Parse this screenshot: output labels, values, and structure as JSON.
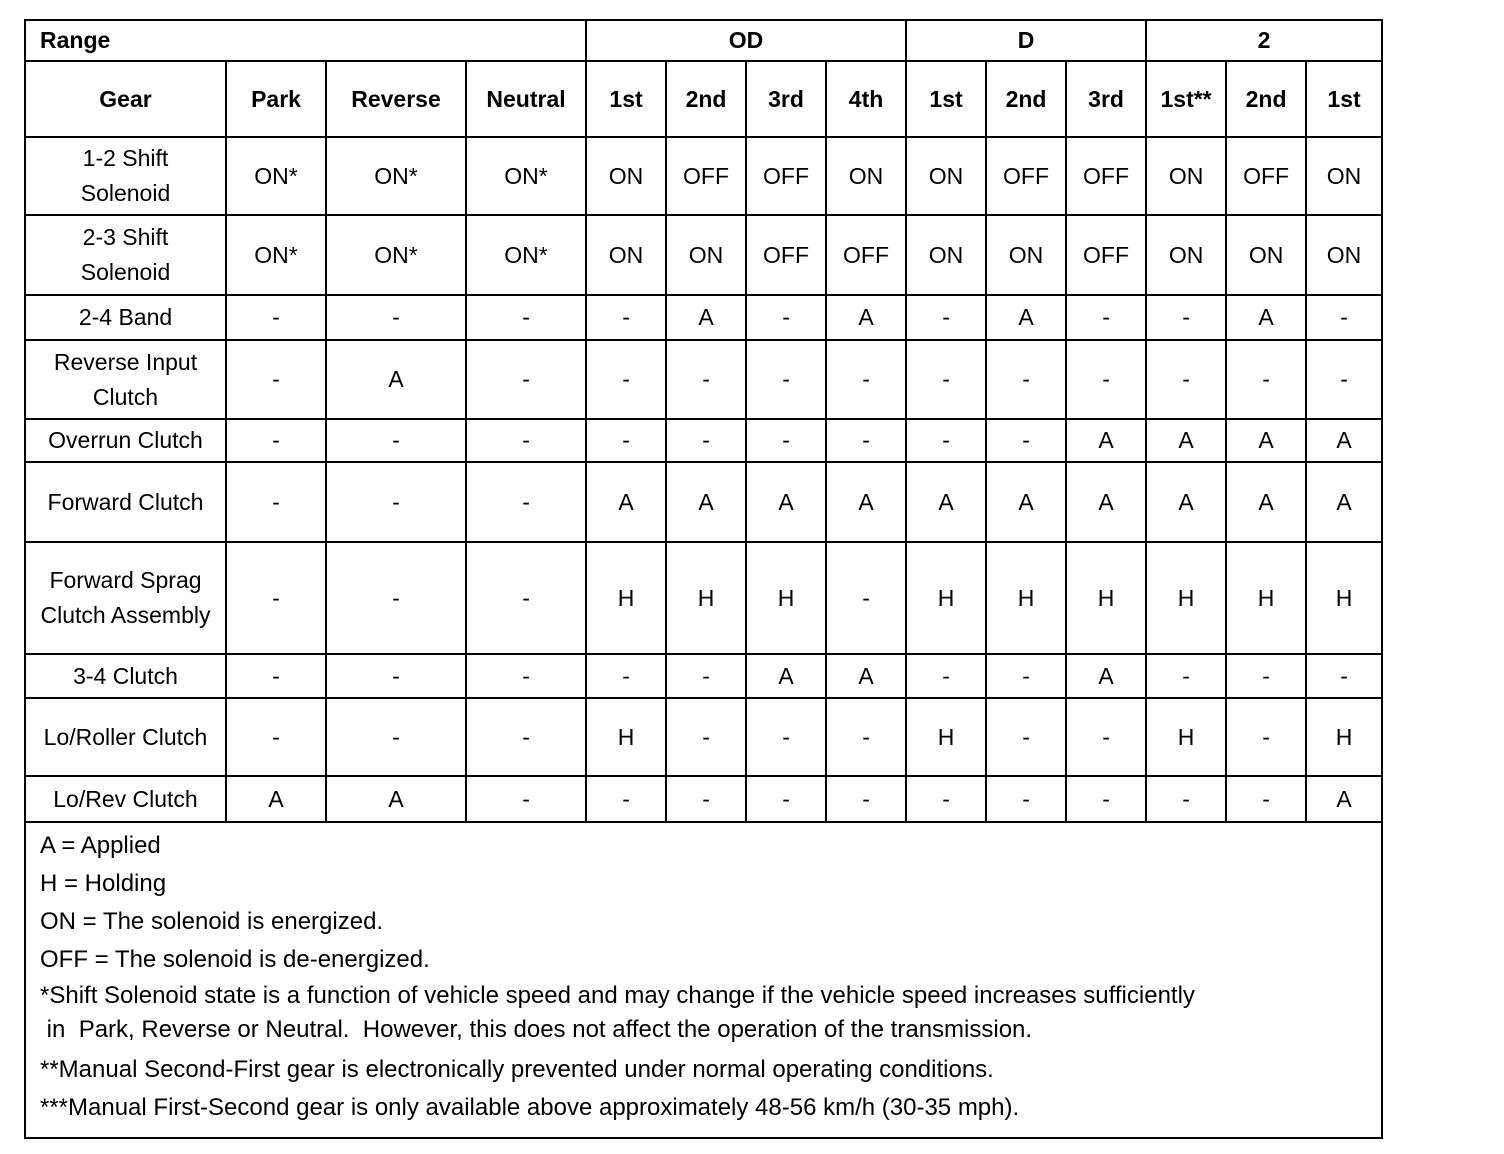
{
  "range_label": "Range",
  "ranges": [
    {
      "label": "OD",
      "span": 4
    },
    {
      "label": "D",
      "span": 3
    },
    {
      "label": "2",
      "span": 3
    }
  ],
  "gear_label": "Gear",
  "gears": [
    "Park",
    "Reverse",
    "Neutral",
    "1st",
    "2nd",
    "3rd",
    "4th",
    "1st",
    "2nd",
    "3rd",
    "1st**",
    "2nd",
    "1st"
  ],
  "rows": [
    {
      "label": "1-2 Shift Solenoid",
      "cells": [
        "ON*",
        "ON*",
        "ON*",
        "ON",
        "OFF",
        "OFF",
        "ON",
        "ON",
        "OFF",
        "OFF",
        "ON",
        "OFF",
        "ON"
      ]
    },
    {
      "label": "2-3 Shift Solenoid",
      "cells": [
        "ON*",
        "ON*",
        "ON*",
        "ON",
        "ON",
        "OFF",
        "OFF",
        "ON",
        "ON",
        "OFF",
        "ON",
        "ON",
        "ON"
      ]
    },
    {
      "label": "2-4 Band",
      "cells": [
        "-",
        "-",
        "-",
        "-",
        "A",
        "-",
        "A",
        "-",
        "A",
        "-",
        "-",
        "A",
        "-"
      ]
    },
    {
      "label": "Reverse Input Clutch",
      "cells": [
        "-",
        "A",
        "-",
        "-",
        "-",
        "-",
        "-",
        "-",
        "-",
        "-",
        "-",
        "-",
        "-"
      ]
    },
    {
      "label": "Overrun Clutch",
      "cells": [
        "-",
        "-",
        "-",
        "-",
        "-",
        "-",
        "-",
        "-",
        "-",
        "A",
        "A",
        "A",
        "A"
      ]
    },
    {
      "label": "Forward Clutch",
      "cells": [
        "-",
        "-",
        "-",
        "A",
        "A",
        "A",
        "A",
        "A",
        "A",
        "A",
        "A",
        "A",
        "A"
      ]
    },
    {
      "label": "Forward Sprag Clutch Assembly",
      "cells": [
        "-",
        "-",
        "-",
        "H",
        "H",
        "H",
        "-",
        "H",
        "H",
        "H",
        "H",
        "H",
        "H"
      ]
    },
    {
      "label": "3-4 Clutch",
      "cells": [
        "-",
        "-",
        "-",
        "-",
        "-",
        "A",
        "A",
        "-",
        "-",
        "A",
        "-",
        "-",
        "-"
      ]
    },
    {
      "label": "Lo/Roller Clutch",
      "cells": [
        "-",
        "-",
        "-",
        "H",
        "-",
        "-",
        "-",
        "H",
        "-",
        "-",
        "H",
        "-",
        "H"
      ]
    },
    {
      "label": "Lo/Rev Clutch",
      "cells": [
        "A",
        "A",
        "-",
        "-",
        "-",
        "-",
        "-",
        "-",
        "-",
        "-",
        "-",
        "-",
        "A"
      ]
    }
  ],
  "notes": [
    "A = Applied",
    "H = Holding",
    "ON = The solenoid is energized.",
    "OFF = The solenoid is de-energized.",
    "*Shift Solenoid state is a function of vehicle speed and may change if the vehicle speed increases sufficiently\n in  Park, Reverse or Neutral.  However, this does not affect the operation of the transmission.",
    "**Manual Second-First gear is electronically prevented under normal operating conditions.",
    "***Manual First-Second gear is only available above approximately 48-56 km/h (30-35 mph)."
  ]
}
